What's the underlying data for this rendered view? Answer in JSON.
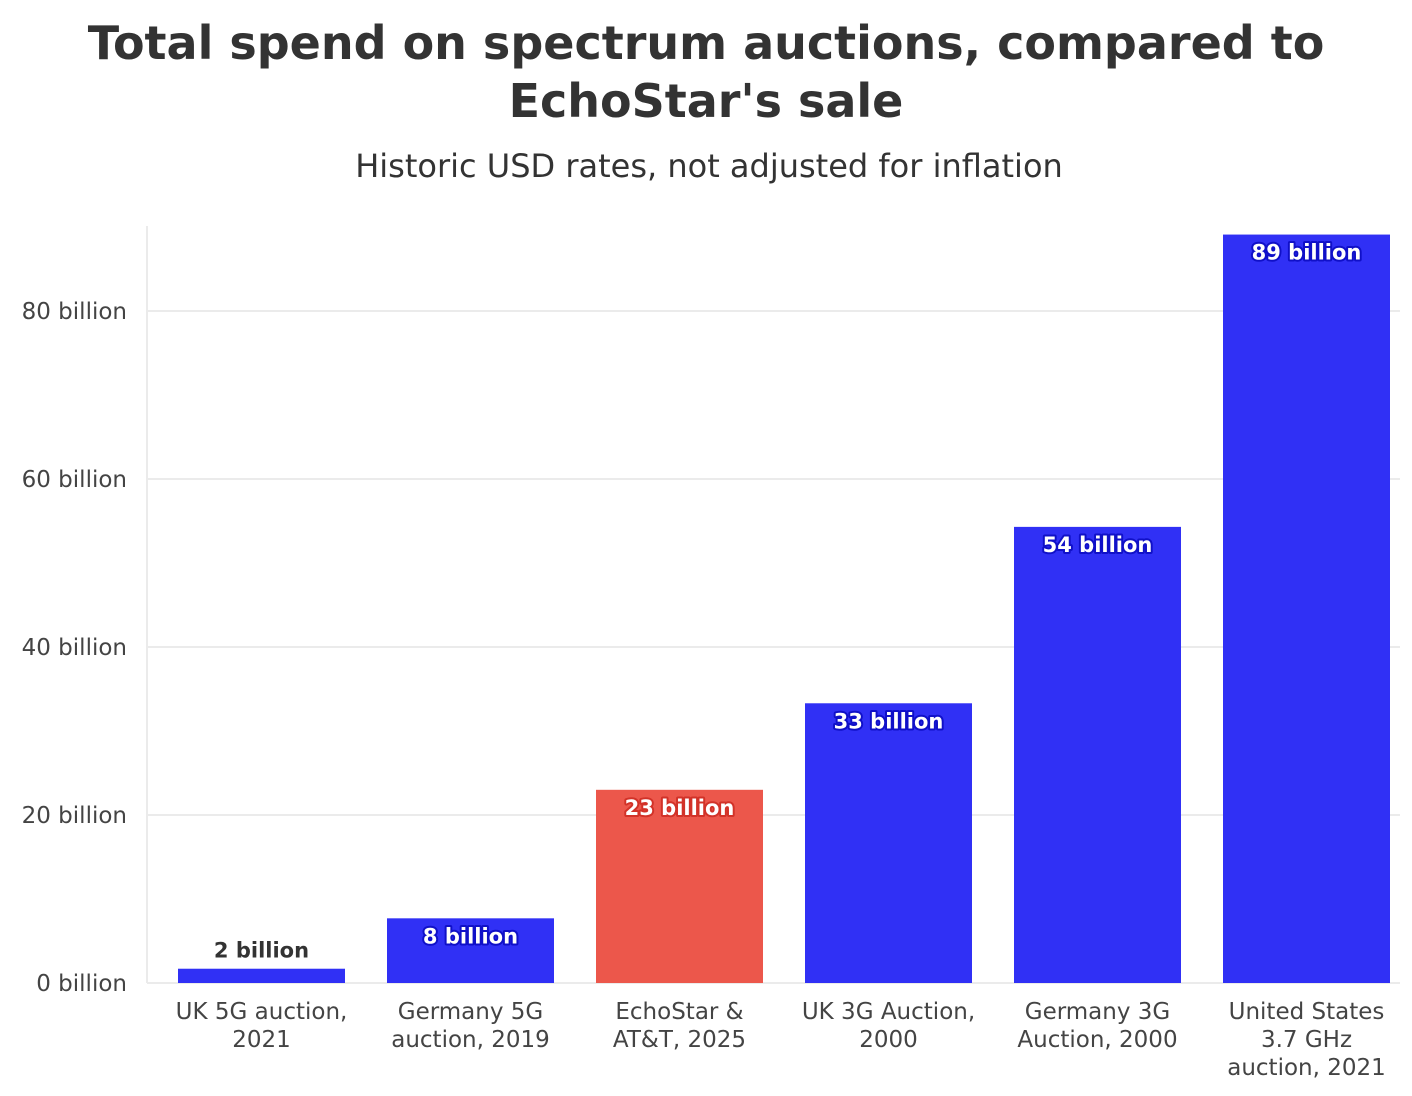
{
  "chart_data": {
    "type": "bar",
    "title_lines": [
      "Total spend on spectrum auctions, compared to",
      "EchoStar's sale"
    ],
    "subtitle": "Historic USD rates, not adjusted for inflation",
    "categories": [
      [
        "UK 5G auction,",
        "2021"
      ],
      [
        "Germany 5G",
        "auction, 2019"
      ],
      [
        "EchoStar &",
        "AT&T, 2025"
      ],
      [
        "UK 3G Auction,",
        "2000"
      ],
      [
        "Germany 3G",
        "Auction, 2000"
      ],
      [
        "United States",
        "3.7 GHz",
        "auction, 2021"
      ]
    ],
    "values": [
      1.7,
      7.7,
      23,
      33.3,
      54.3,
      89.1
    ],
    "data_labels": [
      "2 billion",
      "8 billion",
      "23 billion",
      "33 billion",
      "54 billion",
      "89 billion"
    ],
    "highlight_index": 2,
    "ylim": [
      0,
      90
    ],
    "yticks": [
      0,
      20,
      40,
      60,
      80
    ],
    "ytick_labels": [
      "0 billion",
      "20 billion",
      "40 billion",
      "60 billion",
      "80 billion"
    ],
    "grid": true,
    "colors": {
      "bar": "#3030f5",
      "highlight": "#ec574b",
      "grid": "#ebebeb",
      "label_outline_blue": "#1010c8",
      "label_outline_red": "#d23228"
    }
  }
}
